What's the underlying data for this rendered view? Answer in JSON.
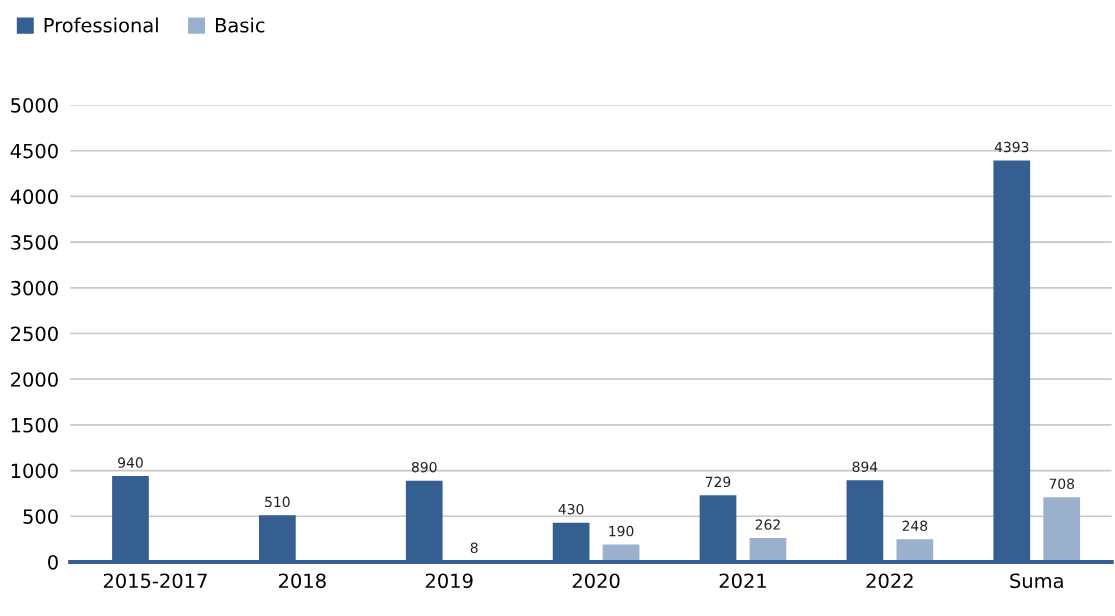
{
  "chart_data": {
    "type": "bar",
    "categories": [
      "2015-2017",
      "2018",
      "2019",
      "2020",
      "2021",
      "2022",
      "Suma"
    ],
    "series": [
      {
        "name": "Professional",
        "color": "#365f91",
        "values": [
          940,
          510,
          890,
          430,
          729,
          894,
          4393
        ],
        "value_labels": [
          "940",
          "510",
          "890",
          "430",
          "729",
          "894",
          "4393"
        ]
      },
      {
        "name": "Basic",
        "color": "#9bb0cc",
        "values": [
          null,
          null,
          8,
          190,
          262,
          248,
          708
        ],
        "value_labels": [
          null,
          null,
          "8",
          "190",
          "262",
          "248",
          "708"
        ]
      }
    ],
    "ylim": [
      0,
      5000
    ],
    "yticks": [
      0,
      500,
      1000,
      1500,
      2000,
      2500,
      3000,
      3500,
      4000,
      4500,
      5000
    ],
    "grid": "y",
    "legend": "top left"
  }
}
